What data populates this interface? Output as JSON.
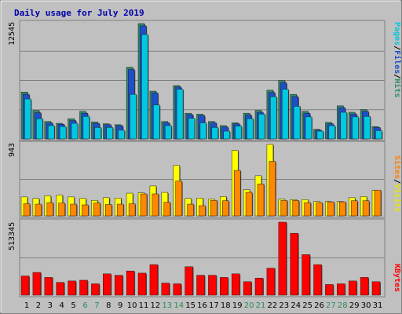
{
  "chart_data": {
    "title": "Daily usage for July 2019",
    "type": "bar",
    "x": [
      "1",
      "2",
      "3",
      "4",
      "5",
      "6",
      "7",
      "8",
      "9",
      "10",
      "11",
      "12",
      "13",
      "14",
      "15",
      "16",
      "17",
      "18",
      "19",
      "20",
      "21",
      "22",
      "23",
      "24",
      "25",
      "26",
      "27",
      "28",
      "29",
      "30",
      "31"
    ],
    "weekend_days": [
      "6",
      "7",
      "13",
      "14",
      "20",
      "21",
      "27",
      "28"
    ],
    "panels": [
      {
        "id": "top",
        "max_label": "12545",
        "ymax": 12545,
        "legend": [
          {
            "text": "Pages",
            "color": "#00c8e0"
          },
          {
            "text": "/",
            "color": "#000000"
          },
          {
            "text": "Files",
            "color": "#1c4fcb"
          },
          {
            "text": "/",
            "color": "#000000"
          },
          {
            "text": "Hits",
            "color": "#2e8b6b"
          }
        ],
        "series": [
          {
            "name": "Hits",
            "color": "#2e8b6b",
            "values": [
              5100,
              3100,
              1900,
              1700,
              2200,
              3000,
              1850,
              1650,
              1550,
              7800,
              12545,
              5200,
              1900,
              5800,
              2800,
              2700,
              1900,
              1450,
              1750,
              2800,
              3100,
              5300,
              6350,
              4850,
              3000,
              1050,
              1800,
              3600,
              2900,
              3200,
              1350
            ]
          },
          {
            "name": "Files",
            "color": "#1c4fcb",
            "values": [
              4850,
              2850,
              1750,
              1600,
              2000,
              2800,
              1700,
              1550,
              1450,
              7550,
              12300,
              5000,
              1750,
              5650,
              2650,
              2550,
              1750,
              1300,
              1650,
              2600,
              2900,
              5050,
              6100,
              4600,
              2800,
              950,
              1650,
              3400,
              2700,
              3000,
              1250
            ]
          },
          {
            "name": "Pages",
            "color": "#00c8e0",
            "values": [
              4350,
              2200,
              1450,
              1350,
              1700,
              2450,
              1250,
              1250,
              950,
              4850,
              11350,
              3700,
              1450,
              5400,
              2250,
              1750,
              1250,
              850,
              1400,
              2200,
              2700,
              4600,
              5400,
              3550,
              2400,
              850,
              1450,
              2900,
              2400,
              2450,
              900
            ]
          }
        ]
      },
      {
        "id": "mid",
        "max_label": "943",
        "ymax": 943,
        "legend": [
          {
            "text": "Sites",
            "color": "#ff8000"
          },
          {
            "text": "/",
            "color": "#000000"
          },
          {
            "text": "Visits",
            "color": "#e6e600"
          }
        ],
        "series": [
          {
            "name": "Visits",
            "color": "#ffff00",
            "values": [
              250,
              230,
              265,
              275,
              250,
              230,
              205,
              240,
              235,
              300,
              305,
              395,
              310,
              665,
              230,
              235,
              220,
              255,
              865,
              345,
              530,
              943,
              220,
              215,
              215,
              190,
              190,
              190,
              240,
              255,
              335
            ]
          },
          {
            "name": "Sites",
            "color": "#ff8800",
            "values": [
              160,
              155,
              175,
              170,
              155,
              145,
              170,
              150,
              155,
              160,
              290,
              290,
              180,
              460,
              155,
              135,
              205,
              200,
              600,
              310,
              420,
              720,
              205,
              205,
              175,
              175,
              185,
              185,
              200,
              200,
              340
            ]
          }
        ]
      },
      {
        "id": "bot",
        "max_label": "513345",
        "ymax": 513345,
        "legend": [
          {
            "text": "KBytes",
            "color": "#ff0000"
          }
        ],
        "series": [
          {
            "name": "KBytes",
            "color": "#ff0000",
            "values": [
              135000,
              160000,
              125000,
              90000,
              100000,
              105000,
              80000,
              150000,
              140000,
              170000,
              155000,
              215000,
              85000,
              80000,
              200000,
              140000,
              140000,
              125000,
              150000,
              95000,
              120000,
              190000,
              513345,
              435000,
              285000,
              215000,
              75000,
              80000,
              100000,
              125000,
              95000
            ]
          }
        ]
      }
    ]
  }
}
